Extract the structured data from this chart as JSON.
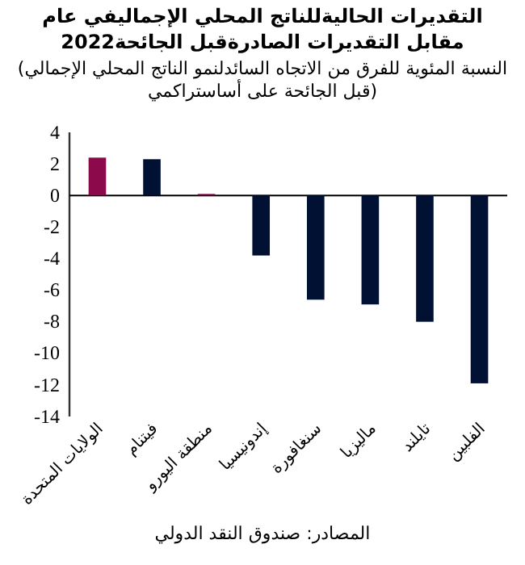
{
  "chart_data": {
    "type": "bar",
    "title": "التقديرات الحاليةللناتج المحلي الإجماليفي عام 2022مقابل التقديرات الصادرةقبل الجائحة",
    "subtitle": "(النسبة المئوية للفرق من الاتجاه السائدلنمو الناتج المحلي الإجمالي قبل الجائحة على أساستراكمي)",
    "categories": [
      "الولايات المتحدة",
      "فيتنام",
      "منطقة اليورو",
      "إندونيسيا",
      "سنغافورة",
      "ماليزيا",
      "تايلند",
      "الفلبين"
    ],
    "values": [
      2.4,
      2.3,
      0.1,
      -3.8,
      -6.6,
      -6.9,
      -8.0,
      -11.9
    ],
    "colors": [
      "#8c0a4b",
      "#011133",
      "#8c0a4b",
      "#011133",
      "#011133",
      "#011133",
      "#011133",
      "#011133"
    ],
    "ylim": [
      -14,
      4
    ],
    "yticks": [
      4,
      2,
      0,
      -2,
      -4,
      -6,
      -8,
      -10,
      -12,
      -14
    ],
    "annotations": [
      "المصادر: صندوق النقد الدولي"
    ]
  }
}
